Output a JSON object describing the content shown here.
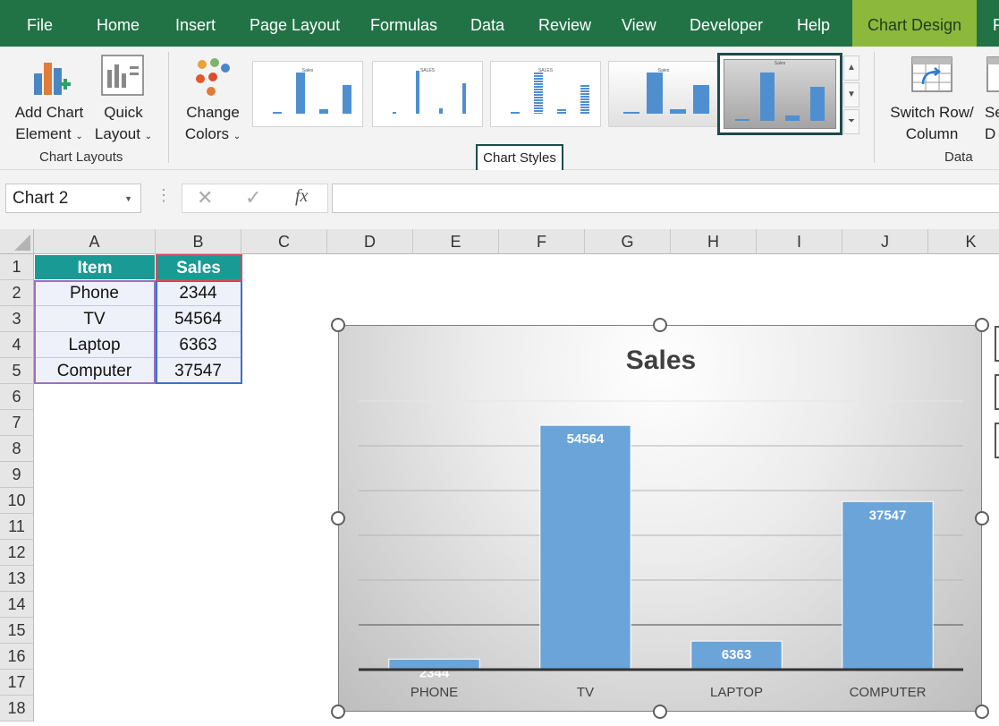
{
  "menu": {
    "tabs": [
      "File",
      "Home",
      "Insert",
      "Page Layout",
      "Formulas",
      "Data",
      "Review",
      "View",
      "Developer",
      "Help",
      "Chart Design"
    ],
    "overflow_letter": "F"
  },
  "ribbon": {
    "chart_layouts": {
      "add_chart_element": [
        "Add Chart",
        "Element"
      ],
      "quick_layout": [
        "Quick",
        "Layout"
      ],
      "group_label": "Chart Layouts"
    },
    "change_colors": [
      "Change",
      "Colors"
    ],
    "chart_styles": {
      "group_label": "Chart Styles",
      "thumbnail_titles": [
        "Sales",
        "SALES",
        "SALES",
        "Sales",
        "Sales"
      ]
    },
    "data": {
      "switch_row_column": [
        "Switch Row/",
        "Column"
      ],
      "next_button_partial": [
        "Se",
        "D"
      ],
      "group_label": "Data"
    }
  },
  "formula_bar": {
    "name_box": "Chart 2",
    "formula": ""
  },
  "sheet": {
    "columns": [
      "A",
      "B",
      "C",
      "D",
      "E",
      "F",
      "G",
      "H",
      "I",
      "J",
      "K"
    ],
    "rows": [
      "1",
      "2",
      "3",
      "4",
      "5",
      "6",
      "7",
      "8",
      "9",
      "10",
      "11",
      "12",
      "13",
      "14",
      "15",
      "16",
      "17",
      "18"
    ],
    "headers": [
      "Item",
      "Sales"
    ],
    "data": [
      [
        "Phone",
        "2344"
      ],
      [
        "TV",
        "54564"
      ],
      [
        "Laptop",
        "6363"
      ],
      [
        "Computer",
        "37547"
      ]
    ]
  },
  "chart_data": {
    "type": "bar",
    "title": "Sales",
    "categories": [
      "PHONE",
      "TV",
      "LAPTOP",
      "COMPUTER"
    ],
    "values": [
      2344,
      54564,
      6363,
      37547
    ],
    "data_labels": [
      "2344",
      "54564",
      "6363",
      "37547"
    ],
    "ylim": [
      0,
      60000
    ],
    "grid": true,
    "legend": "none",
    "bar_color": "#6aa4d9"
  },
  "colors": {
    "ribbon_green": "#217346",
    "active_tab": "#8cb83c",
    "table_header": "#1a9a95"
  }
}
